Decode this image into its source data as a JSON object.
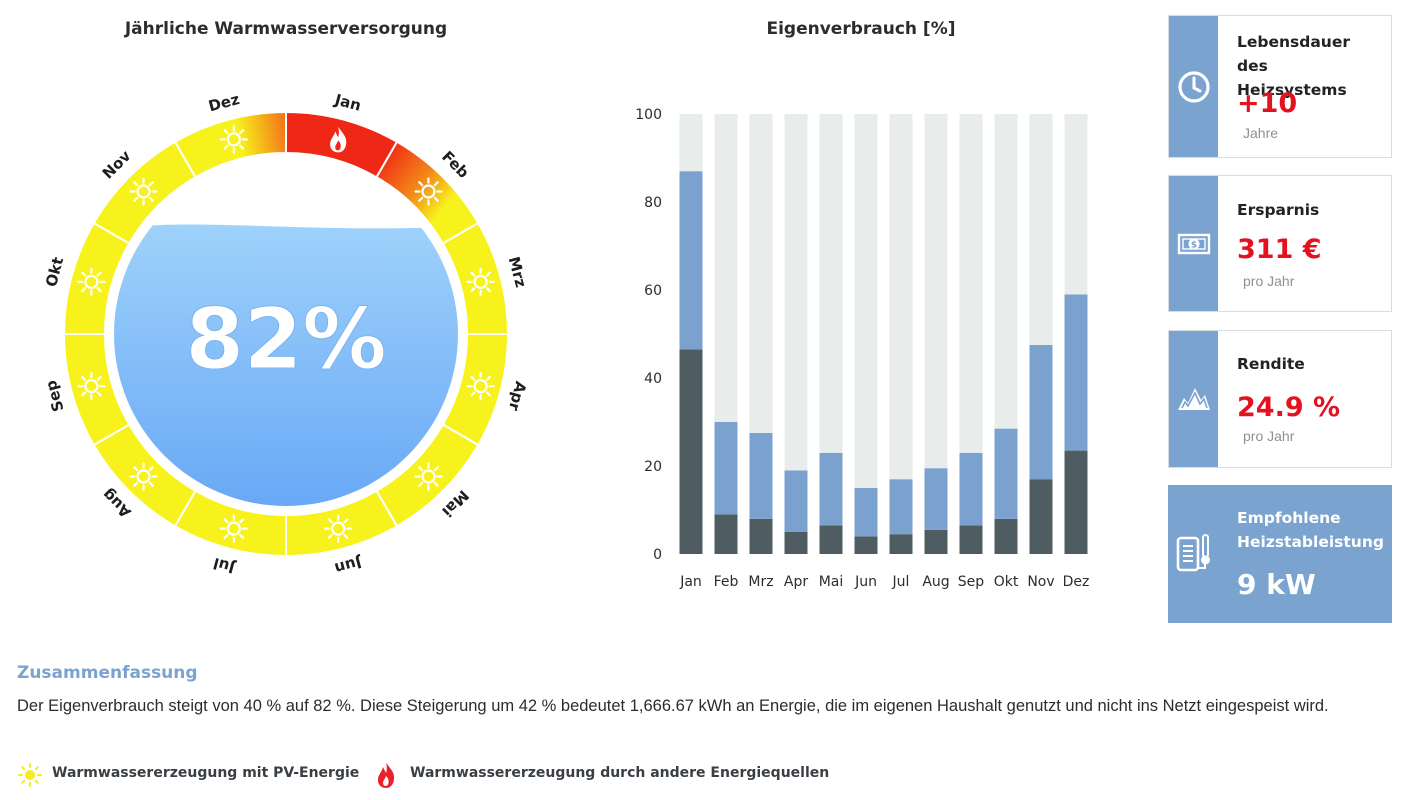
{
  "wheel": {
    "title": "Jährliche Warmwasserversorgung",
    "percentage": "82%",
    "months": [
      {
        "label": "Jan",
        "source": "other"
      },
      {
        "label": "Feb",
        "source": "mixed"
      },
      {
        "label": "Mrz",
        "source": "pv"
      },
      {
        "label": "Apr",
        "source": "pv"
      },
      {
        "label": "Mai",
        "source": "pv"
      },
      {
        "label": "Jun",
        "source": "pv"
      },
      {
        "label": "Jul",
        "source": "pv"
      },
      {
        "label": "Aug",
        "source": "pv"
      },
      {
        "label": "Sep",
        "source": "pv"
      },
      {
        "label": "Okt",
        "source": "pv"
      },
      {
        "label": "Nov",
        "source": "pv"
      },
      {
        "label": "Dez",
        "source": "mixed"
      }
    ],
    "colors": {
      "pv": "#f7f21c",
      "other": "#ee2716",
      "water_top": "#9ed2fb",
      "water_bottom": "#66a6f5"
    }
  },
  "chart_data": {
    "type": "bar",
    "title": "Eigenverbrauch [%]",
    "categories": [
      "Jan",
      "Feb",
      "Mrz",
      "Apr",
      "Mai",
      "Jun",
      "Jul",
      "Aug",
      "Sep",
      "Okt",
      "Nov",
      "Dez"
    ],
    "series": [
      {
        "values": [
          46.5,
          9,
          8,
          5,
          6.5,
          4,
          4.5,
          5.5,
          6.5,
          8,
          17,
          23.5
        ],
        "color": "#4f5d62"
      },
      {
        "values": [
          40.5,
          21,
          19.5,
          14,
          16.5,
          11,
          12.5,
          14,
          16.5,
          20.5,
          30.5,
          35.5
        ],
        "color": "#7ba2cf"
      },
      {
        "values": [
          13,
          70,
          72.5,
          81,
          77,
          85,
          83,
          80.5,
          77,
          71.5,
          52.5,
          41
        ],
        "color": "#e8eceb"
      }
    ],
    "yticks": [
      0,
      20,
      40,
      60,
      80,
      100
    ],
    "ylim": [
      0,
      100
    ],
    "stacked": true
  },
  "cards": [
    {
      "label": "Lebensdauer des Heizsystems",
      "value": "+10",
      "unit": "Jahre",
      "icon": "clock-icon"
    },
    {
      "label": "Ersparnis",
      "value": "311 €",
      "unit": "pro Jahr",
      "icon": "banknote-icon"
    },
    {
      "label": "Rendite",
      "value": "24.9 %",
      "unit": "pro Jahr",
      "icon": "mountain-chart-icon"
    },
    {
      "label": "Empfohlene Heizstableistung",
      "value": "9 kW",
      "icon": "heating-rod-icon"
    }
  ],
  "summary": {
    "heading": "Zusammenfassung",
    "text": "Der Eigenverbrauch steigt von 40 % auf 82 %. Diese Steigerung um 42 % bedeutet 1,666.67 kWh an Energie, die im eigenen Haushalt genutzt und nicht ins Netzt eingespeist wird."
  },
  "legend": {
    "pv_label": "Warmwassererzeugung mit PV-Energie",
    "other_label": "Warmwassererzeugung durch andere Energiequellen"
  }
}
